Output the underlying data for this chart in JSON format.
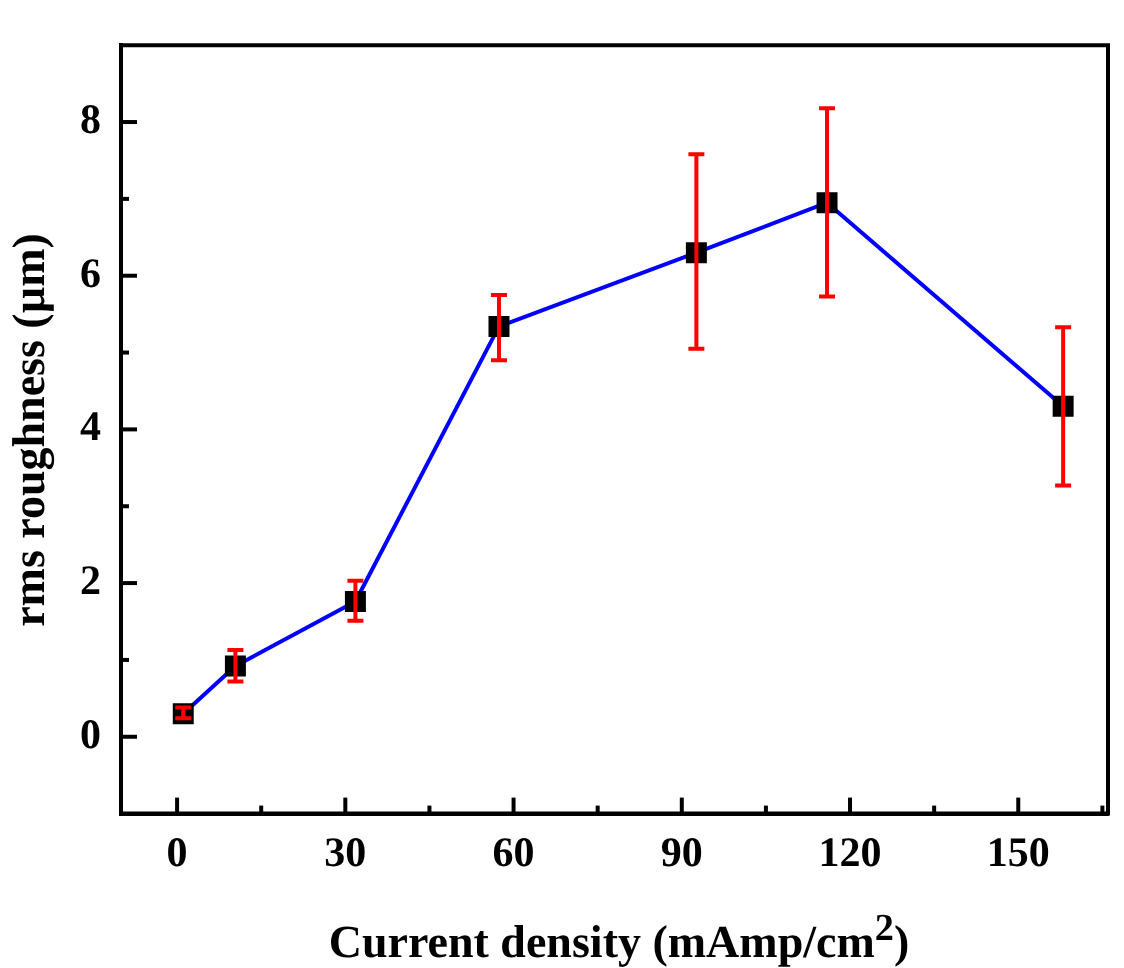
{
  "chart_data": {
    "type": "line",
    "xlabel": "Current density (mAmp/cm$^{2}$)",
    "ylabel": "rms roughness (µm)",
    "x": [
      1.1,
      10.4,
      31.8,
      57.4,
      92.6,
      115.9,
      158
    ],
    "series": [
      {
        "color": "#0000ff",
        "values": [
          0.3,
          0.92,
          1.76,
          5.34,
          6.3,
          6.95,
          4.3
        ],
        "errors": [
          [
            0.24,
            0.38
          ],
          [
            0.72,
            1.13
          ],
          [
            1.51,
            2.03
          ],
          [
            4.9,
            5.75
          ],
          [
            5.05,
            7.58
          ],
          [
            5.73,
            8.18
          ],
          [
            3.27,
            5.33
          ]
        ]
      }
    ],
    "xlim": [
      -10,
      166
    ],
    "ylim": [
      -1,
      9
    ],
    "xticks": [
      0,
      {
        "value": 15,
        "label": null
      },
      30,
      {
        "value": 45,
        "label": null
      },
      60,
      {
        "value": 75,
        "label": null
      },
      90,
      {
        "value": 105,
        "label": null
      },
      120,
      {
        "value": 135,
        "label": null
      },
      150,
      {
        "value": 165,
        "label": null
      }
    ],
    "yticks": [
      0,
      {
        "value": 1,
        "label": null
      },
      2,
      {
        "value": 3,
        "label": null
      },
      4,
      {
        "value": 5,
        "label": null
      },
      6,
      {
        "value": 7,
        "label": null
      },
      8
    ],
    "grid": false,
    "legend": false,
    "marker": "square",
    "line_style": "solid"
  }
}
